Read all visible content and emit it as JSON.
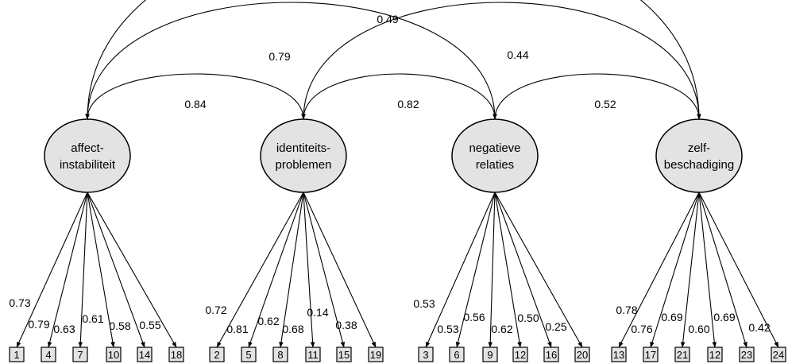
{
  "factors": [
    {
      "lines": [
        "affect-",
        "instabiliteit"
      ]
    },
    {
      "lines": [
        "identiteits-",
        "problemen"
      ]
    },
    {
      "lines": [
        "negatieve",
        "relaties"
      ]
    },
    {
      "lines": [
        "zelf-",
        "beschadiging"
      ]
    }
  ],
  "correlations": [
    {
      "from": 0,
      "to": 1,
      "label": "0.84"
    },
    {
      "from": 1,
      "to": 2,
      "label": "0.82"
    },
    {
      "from": 2,
      "to": 3,
      "label": "0.52"
    },
    {
      "from": 0,
      "to": 2,
      "label": "0.79"
    },
    {
      "from": 1,
      "to": 3,
      "label": "0.44"
    },
    {
      "from": 0,
      "to": 3,
      "label": "0.49"
    }
  ],
  "indicators": [
    {
      "factor": 0,
      "items": [
        "1",
        "4",
        "7",
        "10",
        "14",
        "18"
      ],
      "loadings": [
        "0.73",
        "0.79",
        "0.63",
        "0.61",
        "0.58",
        "0.55"
      ]
    },
    {
      "factor": 1,
      "items": [
        "2",
        "5",
        "8",
        "11",
        "15",
        "19"
      ],
      "loadings": [
        "0.72",
        "0.81",
        "0.62",
        "0.68",
        "0.14",
        "0.38"
      ]
    },
    {
      "factor": 2,
      "items": [
        "3",
        "6",
        "9",
        "12",
        "16",
        "20"
      ],
      "loadings": [
        "0.53",
        "0.53",
        "0.56",
        "0.62",
        "0.50",
        "0.25"
      ]
    },
    {
      "factor": 3,
      "items": [
        "13",
        "17",
        "21",
        "12",
        "23",
        "24"
      ],
      "loadings": [
        "0.78",
        "0.76",
        "0.69",
        "0.60",
        "0.69",
        "0.42"
      ]
    }
  ]
}
